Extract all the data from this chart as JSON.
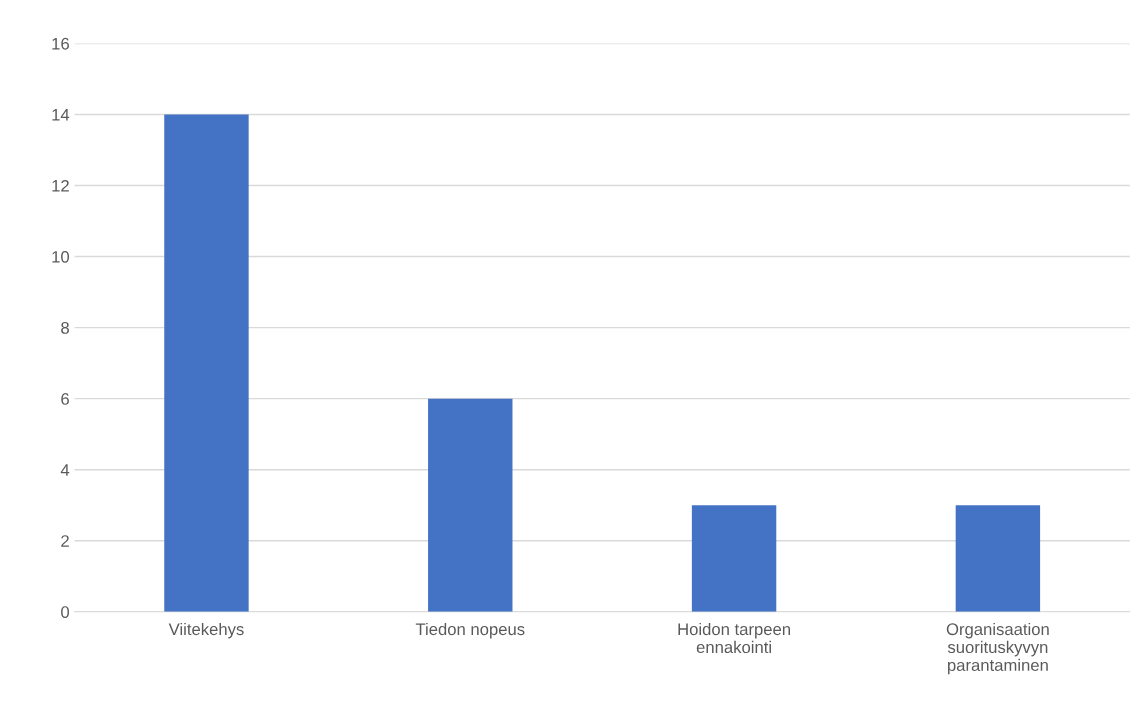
{
  "chart_data": {
    "type": "bar",
    "categories": [
      "Viitekehys",
      "Tiedon nopeus",
      "Hoidon tarpeen ennakointi",
      "Organisaation suorituskyvyn parantaminen"
    ],
    "values": [
      14,
      6,
      3,
      3
    ],
    "color": "#4472c4",
    "ylim": [
      0,
      16
    ],
    "yticks": [
      0,
      2,
      4,
      6,
      8,
      10,
      12,
      14,
      16
    ],
    "grid": "y",
    "legend": false
  }
}
